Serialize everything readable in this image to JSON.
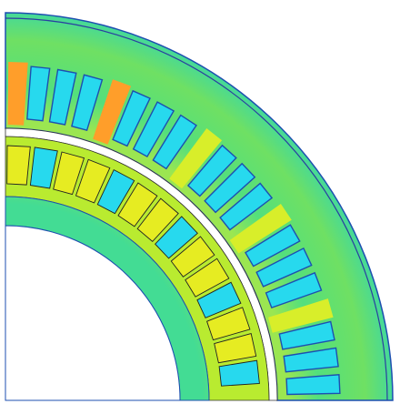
{
  "image": {
    "subject": "fea-field-plot-motor-quarter-section",
    "colors": {
      "background": "#ffffff",
      "stator_yoke": "#4fe07a",
      "stator_yoke_hot": "#d8ee2a",
      "stator_teeth_hot": "#ff9e2a",
      "stator_slots": "#27d9ee",
      "air_gap": "#ffffff",
      "rotor_ring": "#b4ea2e",
      "rotor_magnets": "#e6ec22",
      "rotor_slots": "#27d9ee",
      "rotor_core": "#52df82",
      "outline": "#1d4fb0",
      "dark_line": "#222222"
    }
  }
}
